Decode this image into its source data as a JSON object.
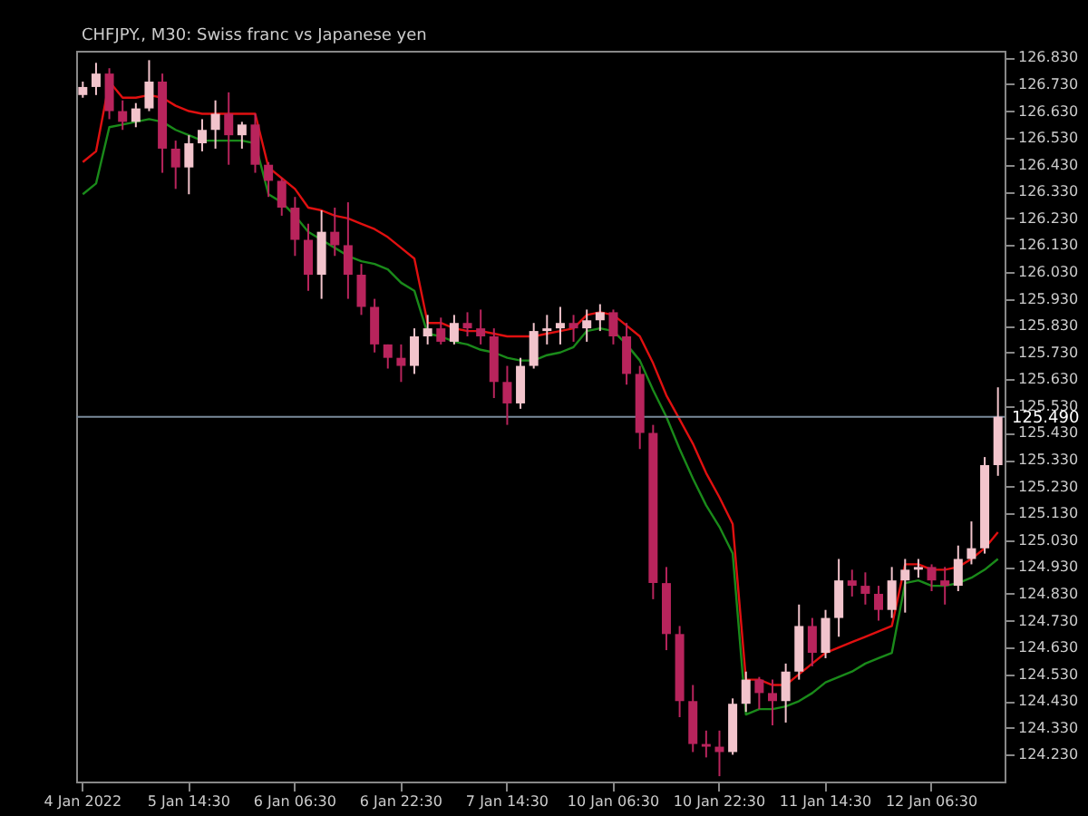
{
  "chart_data": {
    "type": "candlestick",
    "title": "CHFJPY., M30:  Swiss franc vs Japanese yen",
    "categories": [
      "4 Jan 2022",
      null,
      null,
      null,
      null,
      null,
      null,
      null,
      "5 Jan 14:30",
      null,
      null,
      null,
      null,
      null,
      null,
      null,
      "6 Jan 06:30",
      null,
      null,
      null,
      null,
      null,
      null,
      null,
      "6 Jan 22:30",
      null,
      null,
      null,
      null,
      null,
      null,
      null,
      "7 Jan 14:30",
      null,
      null,
      null,
      null,
      null,
      null,
      null,
      "10 Jan 06:30",
      null,
      null,
      null,
      null,
      null,
      null,
      null,
      "10 Jan 22:30",
      null,
      null,
      null,
      null,
      null,
      null,
      null,
      "11 Jan 14:30",
      null,
      null,
      null,
      null,
      null,
      null,
      null,
      "12 Jan 06:30",
      null,
      null,
      null,
      null,
      null
    ],
    "ohlc": [
      [
        126.69,
        126.74,
        126.68,
        126.72
      ],
      [
        126.72,
        126.81,
        126.69,
        126.77
      ],
      [
        126.77,
        126.79,
        126.6,
        126.63
      ],
      [
        126.63,
        126.67,
        126.56,
        126.59
      ],
      [
        126.59,
        126.66,
        126.57,
        126.64
      ],
      [
        126.64,
        126.82,
        126.63,
        126.74
      ],
      [
        126.74,
        126.77,
        126.4,
        126.49
      ],
      [
        126.49,
        126.52,
        126.34,
        126.42
      ],
      [
        126.42,
        126.54,
        126.32,
        126.51
      ],
      [
        126.51,
        126.6,
        126.48,
        126.56
      ],
      [
        126.56,
        126.67,
        126.49,
        126.62
      ],
      [
        126.62,
        126.7,
        126.43,
        126.54
      ],
      [
        126.54,
        126.59,
        126.49,
        126.58
      ],
      [
        126.58,
        126.62,
        126.4,
        126.43
      ],
      [
        126.43,
        126.44,
        126.31,
        126.37
      ],
      [
        126.37,
        126.38,
        126.24,
        126.27
      ],
      [
        126.27,
        126.31,
        126.09,
        126.15
      ],
      [
        126.15,
        126.21,
        125.96,
        126.02
      ],
      [
        126.02,
        126.26,
        125.93,
        126.18
      ],
      [
        126.18,
        126.27,
        126.09,
        126.13
      ],
      [
        126.13,
        126.29,
        125.93,
        126.02
      ],
      [
        126.02,
        126.06,
        125.87,
        125.9
      ],
      [
        125.9,
        125.93,
        125.73,
        125.76
      ],
      [
        125.76,
        125.76,
        125.67,
        125.71
      ],
      [
        125.71,
        125.76,
        125.62,
        125.68
      ],
      [
        125.68,
        125.82,
        125.65,
        125.79
      ],
      [
        125.79,
        125.87,
        125.76,
        125.82
      ],
      [
        125.82,
        125.86,
        125.76,
        125.77
      ],
      [
        125.77,
        125.87,
        125.76,
        125.84
      ],
      [
        125.84,
        125.88,
        125.79,
        125.82
      ],
      [
        125.82,
        125.89,
        125.76,
        125.79
      ],
      [
        125.79,
        125.82,
        125.56,
        125.62
      ],
      [
        125.62,
        125.68,
        125.46,
        125.54
      ],
      [
        125.54,
        125.71,
        125.52,
        125.68
      ],
      [
        125.68,
        125.84,
        125.67,
        125.81
      ],
      [
        125.81,
        125.87,
        125.76,
        125.82
      ],
      [
        125.82,
        125.9,
        125.76,
        125.84
      ],
      [
        125.84,
        125.87,
        125.77,
        125.82
      ],
      [
        125.82,
        125.89,
        125.77,
        125.85
      ],
      [
        125.85,
        125.91,
        125.81,
        125.88
      ],
      [
        125.88,
        125.89,
        125.76,
        125.79
      ],
      [
        125.79,
        125.84,
        125.61,
        125.65
      ],
      [
        125.65,
        125.68,
        125.37,
        125.43
      ],
      [
        125.43,
        125.46,
        124.81,
        124.87
      ],
      [
        124.87,
        124.93,
        124.62,
        124.68
      ],
      [
        124.68,
        124.71,
        124.37,
        124.43
      ],
      [
        124.43,
        124.49,
        124.24,
        124.27
      ],
      [
        124.27,
        124.32,
        124.22,
        124.26
      ],
      [
        124.26,
        124.32,
        124.15,
        124.24
      ],
      [
        124.24,
        124.44,
        124.23,
        124.42
      ],
      [
        124.42,
        124.54,
        124.39,
        124.51
      ],
      [
        124.51,
        124.52,
        124.4,
        124.46
      ],
      [
        124.46,
        124.51,
        124.34,
        124.43
      ],
      [
        124.43,
        124.57,
        124.35,
        124.54
      ],
      [
        124.54,
        124.79,
        124.51,
        124.71
      ],
      [
        124.71,
        124.74,
        124.56,
        124.61
      ],
      [
        124.61,
        124.77,
        124.59,
        124.74
      ],
      [
        124.74,
        124.96,
        124.67,
        124.88
      ],
      [
        124.88,
        124.92,
        124.82,
        124.86
      ],
      [
        124.86,
        124.91,
        124.79,
        124.83
      ],
      [
        124.83,
        124.86,
        124.73,
        124.77
      ],
      [
        124.77,
        124.93,
        124.74,
        124.88
      ],
      [
        124.88,
        124.96,
        124.76,
        124.92
      ],
      [
        124.92,
        124.96,
        124.89,
        124.93
      ],
      [
        124.93,
        124.94,
        124.84,
        124.88
      ],
      [
        124.88,
        124.93,
        124.79,
        124.86
      ],
      [
        124.86,
        125.01,
        124.84,
        124.96
      ],
      [
        124.96,
        125.1,
        124.94,
        125.0
      ],
      [
        125.0,
        125.34,
        124.98,
        125.31
      ],
      [
        125.31,
        125.6,
        125.27,
        125.49
      ]
    ],
    "colors": [
      "#f2c4cc",
      "#f2c4cc",
      "#b8245c",
      "#b8245c",
      "#f2c4cc",
      "#f2c4cc",
      "#b8245c",
      "#b8245c",
      "#f2c4cc",
      "#f2c4cc",
      "#f2c4cc",
      "#b8245c",
      "#f2c4cc",
      "#b8245c",
      "#b8245c",
      "#b8245c",
      "#b8245c",
      "#b8245c",
      "#f2c4cc",
      "#b8245c",
      "#b8245c",
      "#b8245c",
      "#b8245c",
      "#b8245c",
      "#b8245c",
      "#f2c4cc",
      "#f2c4cc",
      "#b8245c",
      "#f2c4cc",
      "#b8245c",
      "#b8245c",
      "#b8245c",
      "#b8245c",
      "#f2c4cc",
      "#f2c4cc",
      "#f2c4cc",
      "#f2c4cc",
      "#b8245c",
      "#f2c4cc",
      "#f2c4cc",
      "#b8245c",
      "#b8245c",
      "#b8245c",
      "#b8245c",
      "#b8245c",
      "#b8245c",
      "#b8245c",
      "#b8245c",
      "#b8245c",
      "#f2c4cc",
      "#f2c4cc",
      "#b8245c",
      "#b8245c",
      "#f2c4cc",
      "#f2c4cc",
      "#b8245c",
      "#f2c4cc",
      "#f2c4cc",
      "#b8245c",
      "#b8245c",
      "#b8245c",
      "#f2c4cc",
      "#f2c4cc",
      "#f2c4cc",
      "#b8245c",
      "#b8245c",
      "#f2c4cc",
      "#f2c4cc",
      "#f2c4cc",
      "#f2c4cc"
    ],
    "series": [
      {
        "type": "line",
        "color": "#e01010",
        "values": [
          126.44,
          126.48,
          126.74,
          126.68,
          126.68,
          126.69,
          126.68,
          126.65,
          126.63,
          126.62,
          126.62,
          126.62,
          126.62,
          126.62,
          126.42,
          126.38,
          126.34,
          126.27,
          126.26,
          126.24,
          126.23,
          126.21,
          126.19,
          126.16,
          126.12,
          126.08,
          125.84,
          125.84,
          125.82,
          125.81,
          125.81,
          125.8,
          125.79,
          125.79,
          125.79,
          125.8,
          125.81,
          125.82,
          125.87,
          125.88,
          125.87,
          125.83,
          125.79,
          125.69,
          125.57,
          125.48,
          125.39,
          125.28,
          125.19,
          125.09,
          124.51,
          124.51,
          124.49,
          124.49,
          124.53,
          124.57,
          124.61,
          124.63,
          124.65,
          124.67,
          124.69,
          124.71,
          124.94,
          124.94,
          124.92,
          124.92,
          124.93,
          124.96,
          125.0,
          125.06
        ]
      },
      {
        "type": "line",
        "color": "#1a8a1a",
        "values": [
          126.32,
          126.36,
          126.57,
          126.58,
          126.59,
          126.6,
          126.59,
          126.56,
          126.54,
          126.52,
          126.52,
          126.52,
          126.52,
          126.51,
          126.32,
          126.29,
          126.24,
          126.18,
          126.15,
          126.12,
          126.09,
          126.07,
          126.06,
          126.04,
          125.99,
          125.96,
          125.8,
          125.79,
          125.77,
          125.76,
          125.74,
          125.73,
          125.71,
          125.7,
          125.7,
          125.72,
          125.73,
          125.75,
          125.81,
          125.82,
          125.81,
          125.76,
          125.7,
          125.59,
          125.49,
          125.37,
          125.26,
          125.16,
          125.08,
          124.98,
          124.38,
          124.4,
          124.4,
          124.41,
          124.43,
          124.46,
          124.5,
          124.52,
          124.54,
          124.57,
          124.59,
          124.61,
          124.87,
          124.88,
          124.86,
          124.86,
          124.87,
          124.89,
          124.92,
          124.96
        ]
      }
    ],
    "ylim": [
      124.13,
      126.855
    ],
    "yticks": [
      {
        "value": 126.83,
        "label": "126.830"
      },
      {
        "value": 126.73,
        "label": "126.730"
      },
      {
        "value": 126.63,
        "label": "126.630"
      },
      {
        "value": 126.53,
        "label": "126.530"
      },
      {
        "value": 126.43,
        "label": "126.430"
      },
      {
        "value": 126.33,
        "label": "126.330"
      },
      {
        "value": 126.23,
        "label": "126.230"
      },
      {
        "value": 126.13,
        "label": "126.130"
      },
      {
        "value": 126.03,
        "label": "126.030"
      },
      {
        "value": 125.93,
        "label": "125.930"
      },
      {
        "value": 125.83,
        "label": "125.830"
      },
      {
        "value": 125.73,
        "label": "125.730"
      },
      {
        "value": 125.63,
        "label": "125.630"
      },
      {
        "value": 125.53,
        "label": "125.530"
      },
      {
        "value": 125.43,
        "label": "125.430"
      },
      {
        "value": 125.33,
        "label": "125.330"
      },
      {
        "value": 125.23,
        "label": "125.230"
      },
      {
        "value": 125.13,
        "label": "125.130"
      },
      {
        "value": 125.03,
        "label": "125.030"
      },
      {
        "value": 124.93,
        "label": "124.930"
      },
      {
        "value": 124.83,
        "label": "124.830"
      },
      {
        "value": 124.73,
        "label": "124.730"
      },
      {
        "value": 124.63,
        "label": "124.630"
      },
      {
        "value": 124.53,
        "label": "124.530"
      },
      {
        "value": 124.43,
        "label": "124.430"
      },
      {
        "value": 124.33,
        "label": "124.330"
      },
      {
        "value": 124.23,
        "label": "124.230"
      }
    ],
    "ref_lines": [
      {
        "axis": "y",
        "value": 125.49,
        "label": "125.490",
        "color": "#7a8a9a"
      }
    ]
  }
}
